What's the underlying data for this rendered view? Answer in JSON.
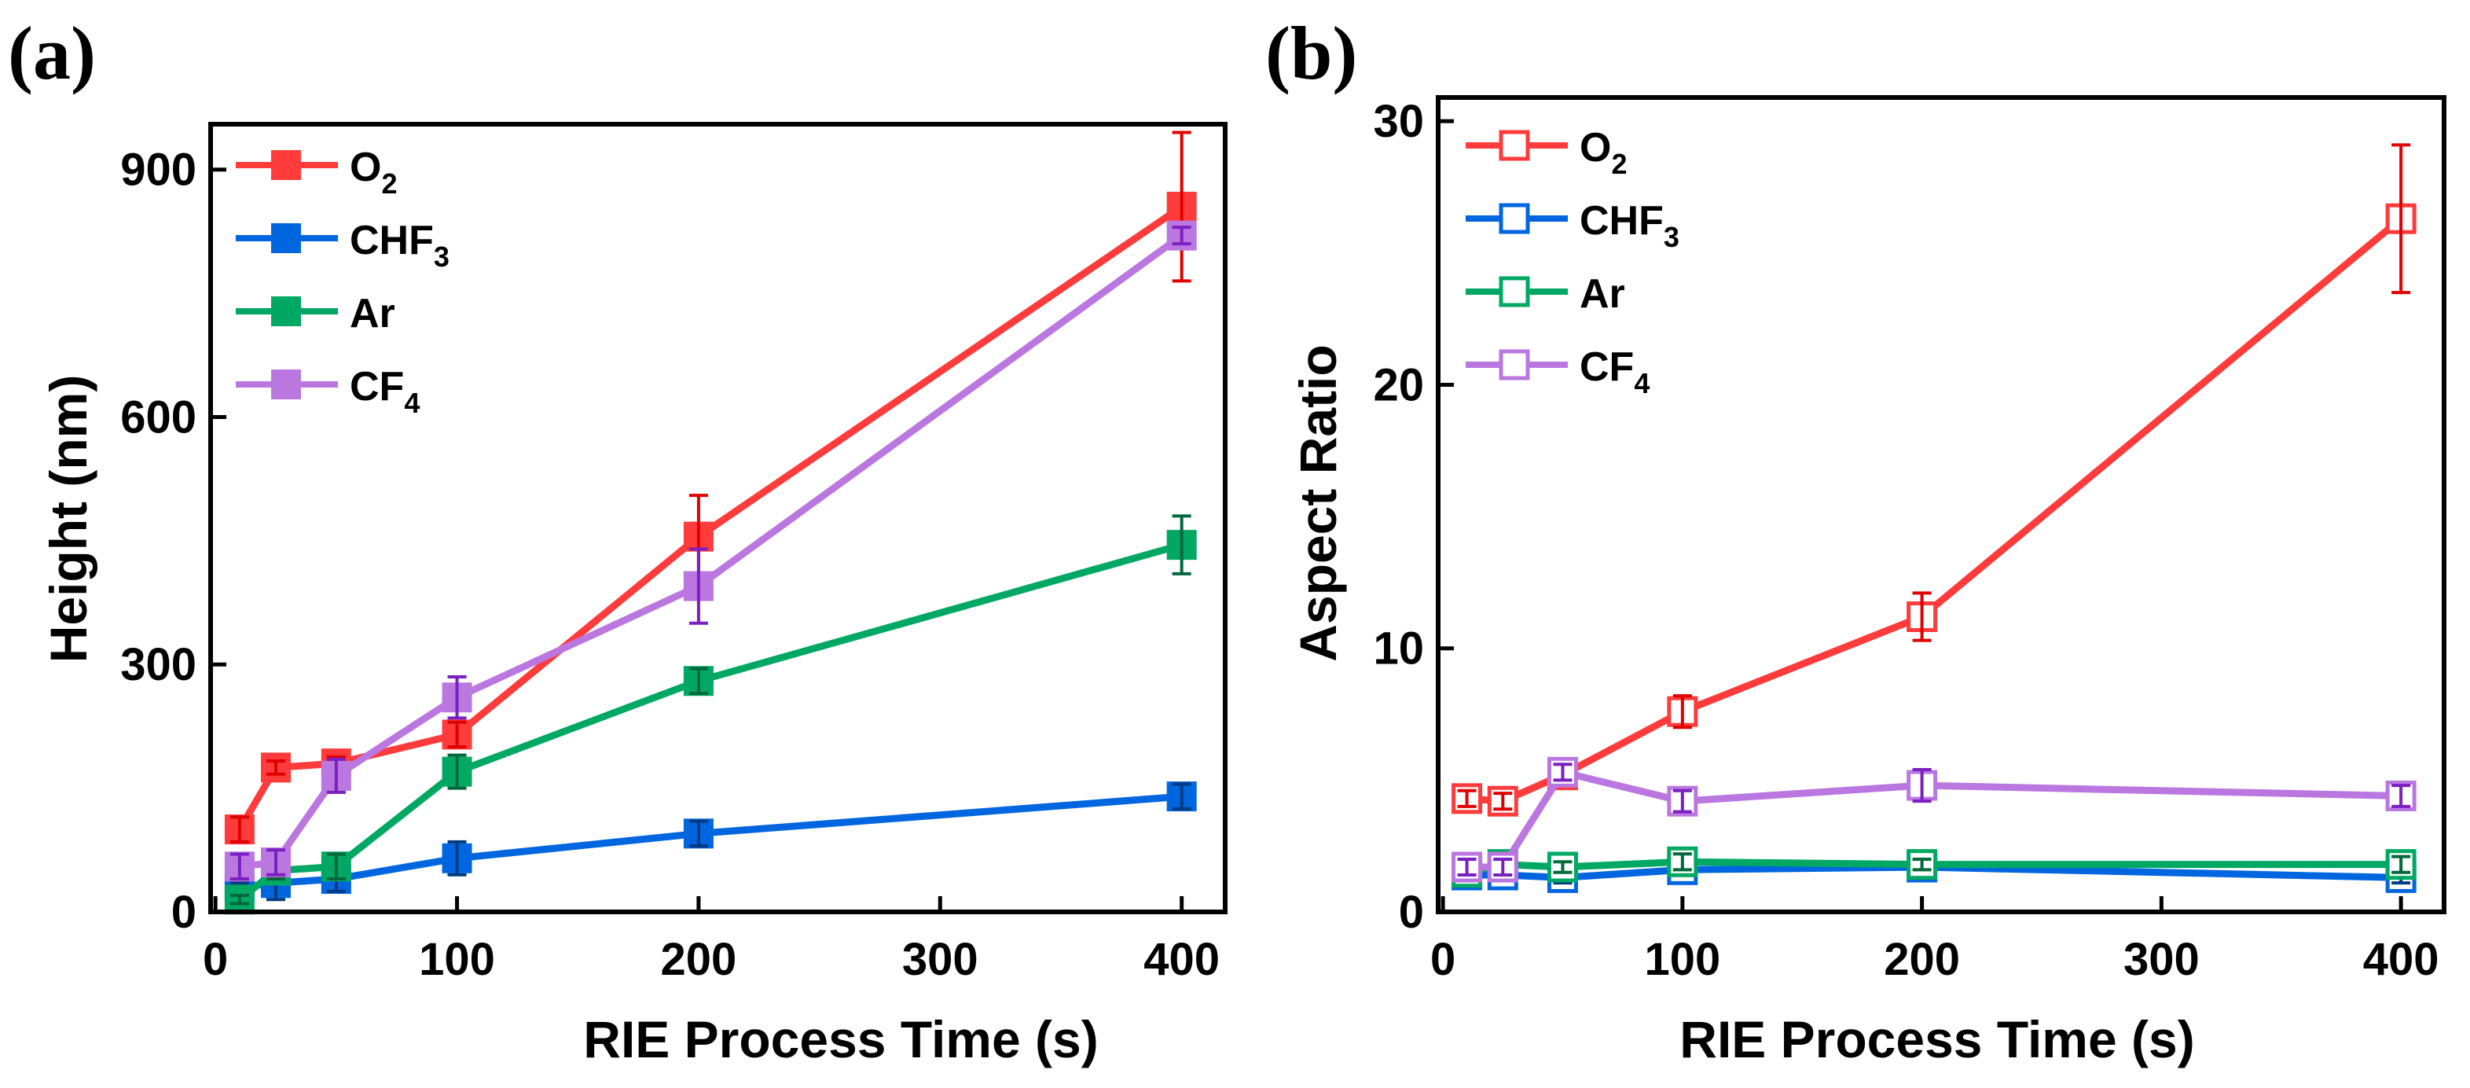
{
  "colors": {
    "O2": "#ff3b3b",
    "CHF3": "#0066e0",
    "Ar": "#00a864",
    "CF4": "#bb77e0",
    "err_O2": "#e00000",
    "err_CHF3": "#003a80",
    "err_Ar": "#00683c",
    "err_CF4": "#7a1fc0"
  },
  "chart_data": [
    {
      "type": "line",
      "panel_label": "(a)",
      "xlabel": "RIE Process Time (s)",
      "ylabel": "Height (nm)",
      "xlim": [
        -2,
        418
      ],
      "ylim": [
        0,
        955
      ],
      "xticks": [
        0,
        100,
        200,
        300,
        400
      ],
      "yticks": [
        0,
        300,
        600,
        900
      ],
      "marker": "filled-square",
      "legend": "top-left",
      "x": [
        10,
        25,
        50,
        100,
        200,
        400
      ],
      "series": [
        {
          "name": "O2",
          "label_main": "O",
          "label_sub": "2",
          "color_key": "O2",
          "values": [
            100,
            175,
            180,
            215,
            455,
            855
          ],
          "err": [
            15,
            8,
            8,
            15,
            50,
            90
          ]
        },
        {
          "name": "CHF3",
          "label_main": "CHF",
          "label_sub": "3",
          "color_key": "CHF3",
          "values": [
            30,
            35,
            40,
            65,
            95,
            140
          ],
          "err": [
            5,
            20,
            15,
            20,
            15,
            15
          ]
        },
        {
          "name": "Ar",
          "label_main": "Ar",
          "label_sub": "",
          "color_key": "Ar",
          "values": [
            15,
            50,
            55,
            170,
            280,
            445
          ],
          "err": [
            5,
            10,
            15,
            20,
            15,
            35
          ]
        },
        {
          "name": "CF4",
          "label_main": "CF",
          "label_sub": "4",
          "color_key": "CF4",
          "values": [
            55,
            60,
            165,
            260,
            395,
            820
          ],
          "err": [
            15,
            15,
            20,
            25,
            45,
            10
          ]
        }
      ]
    },
    {
      "type": "line",
      "panel_label": "(b)",
      "xlabel": "RIE Process Time (s)",
      "ylabel": "Aspect Ratio",
      "xlim": [
        -2,
        418
      ],
      "ylim": [
        0,
        30.9
      ],
      "xticks": [
        0,
        100,
        200,
        300,
        400
      ],
      "yticks": [
        0,
        10,
        20,
        30
      ],
      "marker": "hollow-square",
      "legend": "top-left",
      "x": [
        10,
        25,
        50,
        100,
        200,
        400
      ],
      "series": [
        {
          "name": "O2",
          "label_main": "O",
          "label_sub": "2",
          "color_key": "O2",
          "values": [
            4.3,
            4.2,
            5.2,
            7.6,
            11.2,
            26.3
          ],
          "err": [
            0.3,
            0.3,
            0.3,
            0.6,
            0.9,
            2.8
          ]
        },
        {
          "name": "CHF3",
          "label_main": "CHF",
          "label_sub": "3",
          "color_key": "CHF3",
          "values": [
            1.4,
            1.4,
            1.3,
            1.6,
            1.7,
            1.3
          ],
          "err": [
            0.2,
            0.2,
            0.2,
            0.2,
            0.2,
            0.2
          ]
        },
        {
          "name": "Ar",
          "label_main": "Ar",
          "label_sub": "",
          "color_key": "Ar",
          "values": [
            1.5,
            1.8,
            1.7,
            1.9,
            1.8,
            1.8
          ],
          "err": [
            0.2,
            0.2,
            0.2,
            0.3,
            0.2,
            0.3
          ]
        },
        {
          "name": "CF4",
          "label_main": "CF",
          "label_sub": "4",
          "color_key": "CF4",
          "values": [
            1.7,
            1.7,
            5.3,
            4.2,
            4.8,
            4.4
          ],
          "err": [
            0.3,
            0.3,
            0.3,
            0.4,
            0.6,
            0.4
          ]
        }
      ]
    }
  ]
}
